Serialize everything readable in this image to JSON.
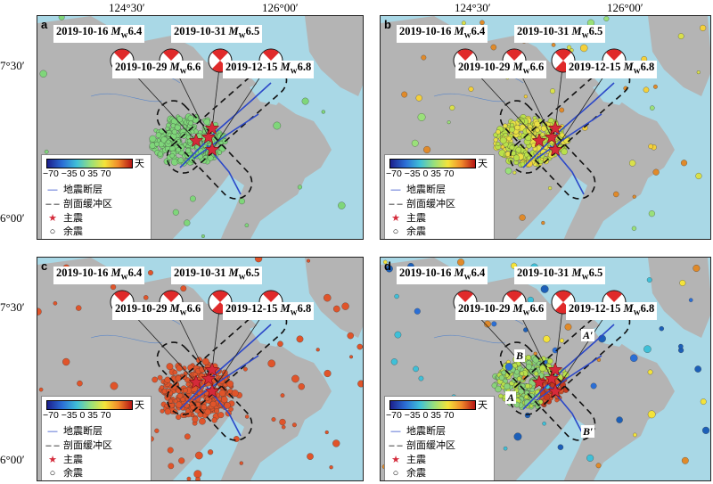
{
  "axes": {
    "x_ticks": [
      "124°30′",
      "126°00′"
    ],
    "y_ticks": [
      "7°30′",
      "6°00′"
    ]
  },
  "events": [
    {
      "date": "2019-10-16",
      "mw_prefix": "M",
      "mw_sub": "W",
      "mag": "6.4"
    },
    {
      "date": "2019-10-29",
      "mw_prefix": "M",
      "mw_sub": "W",
      "mag": "6.6"
    },
    {
      "date": "2019-10-31",
      "mw_prefix": "M",
      "mw_sub": "W",
      "mag": "6.5"
    },
    {
      "date": "2019-12-15",
      "mw_prefix": "M",
      "mw_sub": "W",
      "mag": "6.8"
    }
  ],
  "legend": {
    "colorbar_unit": "天",
    "colorbar_ticks": "−70 −35  0   35  70",
    "fault": "地震断层",
    "buffer": "剖面缓冲区",
    "mainshock": "主震",
    "aftershock": "余震"
  },
  "panels": [
    {
      "letter": "a",
      "dot_color": "#7fd67a"
    },
    {
      "letter": "b",
      "dot_color": "#d9e04a"
    },
    {
      "letter": "c",
      "dot_color": "#e0542a"
    },
    {
      "letter": "d",
      "dot_color": "#8ad37a"
    }
  ],
  "profiles": {
    "A": "A",
    "A_prime": "A′",
    "B": "B",
    "B_prime": "B′"
  },
  "colors": {
    "sea": "#a9d8e6",
    "land": "#b4b4b4",
    "fault": "#2c48c8",
    "mainshock": "#d42a3a"
  }
}
